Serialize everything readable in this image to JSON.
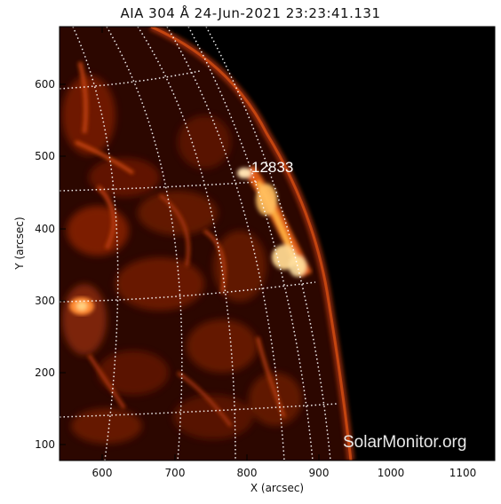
{
  "title": "AIA 304 Å 24-Jun-2021 23:23:41.131",
  "region_label": "12833",
  "watermark": "SolarMonitor.org",
  "x_axis": {
    "label": "X (arcsec)",
    "ticks": [
      "600",
      "700",
      "800",
      "900",
      "1000",
      "1100"
    ]
  },
  "y_axis": {
    "label": "Y (arcsec)",
    "ticks": [
      "100",
      "200",
      "300",
      "400",
      "500",
      "600"
    ]
  },
  "colors": {
    "background": "#000000",
    "disk_dark": "#2a0700",
    "emission": "#ff5a10",
    "bright": "#ffd080"
  }
}
